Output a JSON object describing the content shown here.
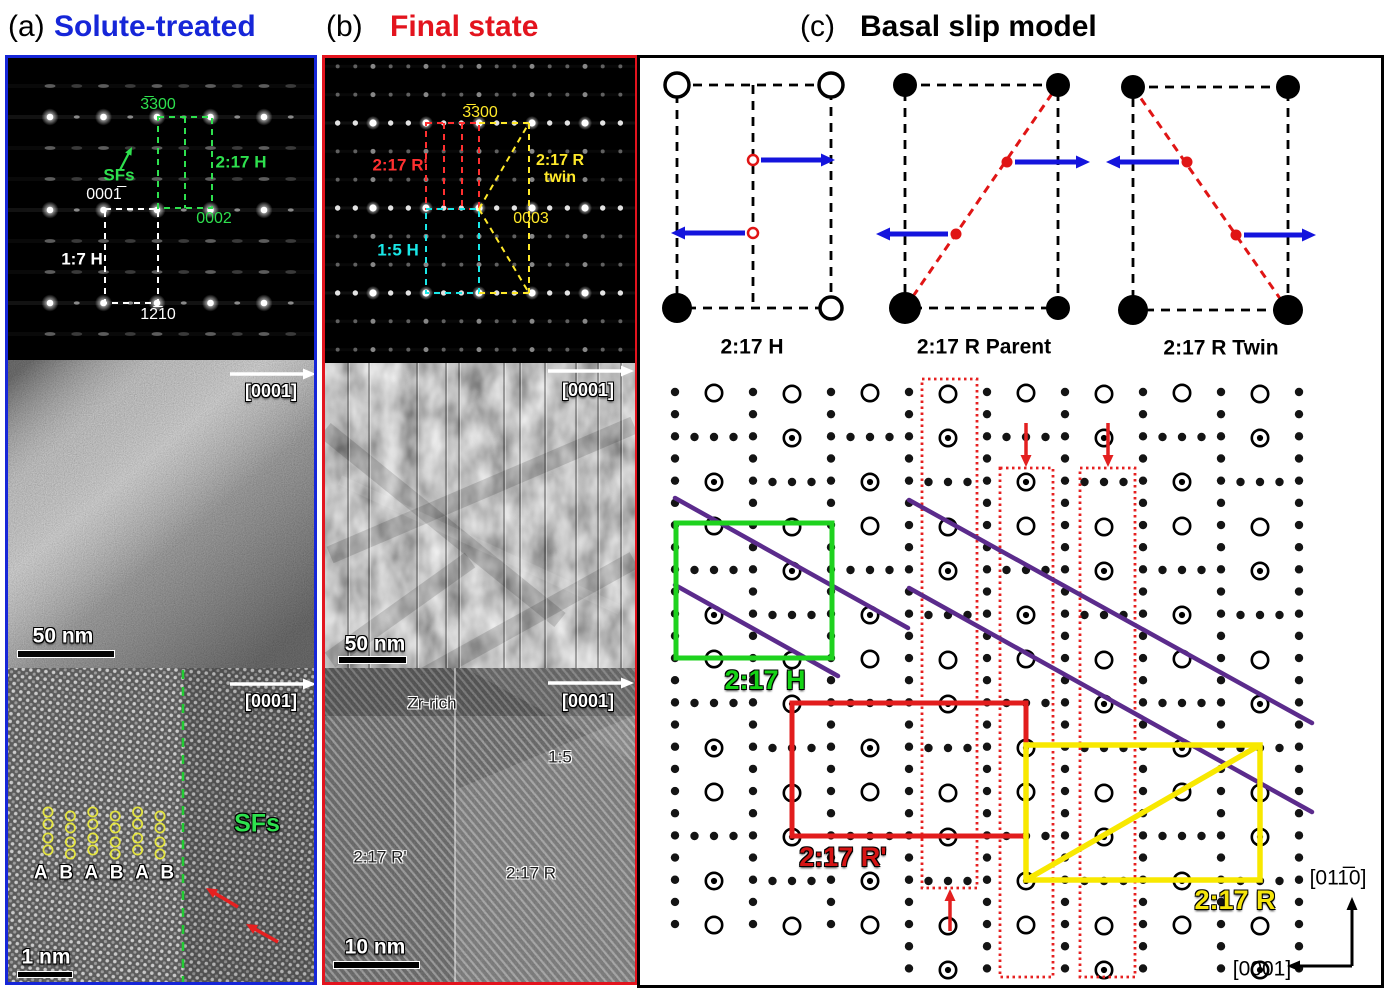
{
  "header": {
    "a_tag": "(a)",
    "a_title": "Solute-treated",
    "b_tag": "(b)",
    "b_title": "Final state",
    "c_tag": "(c)",
    "c_title": "Basal slip model"
  },
  "panel_a": {
    "diffraction": {
      "refl_3300": "3̅300",
      "sfs_label": "SFs",
      "phase_217h": "2:17 H",
      "refl_0002": "0002",
      "refl_0001": "0001̅",
      "phase_17h": "1:7 H",
      "refl_1210": "12̅10"
    },
    "tem": {
      "zone_axis": "[0001]",
      "scale": "50 nm"
    },
    "hrtem": {
      "zone_axis": "[0001]",
      "sfs_label": "SFs",
      "stacking": "A B A B A B",
      "scale": "1 nm"
    }
  },
  "panel_b": {
    "diffraction": {
      "refl_3300": "3̅300",
      "phase_217rp": "2:17 R'",
      "phase_217r_1": "2:17 R",
      "phase_217r_2": "twin",
      "refl_0003": "0003",
      "phase_15h": "1:5 H"
    },
    "tem": {
      "zone_axis": "[0001]",
      "scale": "50 nm"
    },
    "hrtem": {
      "zone_axis": "[0001]",
      "zr_rich": "Zr-rich",
      "phase_15": "1:5",
      "phase_217rp": "2:17 R'",
      "phase_217r": "2:17 R",
      "scale": "10 nm"
    }
  },
  "panel_c": {
    "cells": {
      "h": "2:17 H",
      "parent": "2:17 R Parent",
      "twin": "2:17 R Twin"
    },
    "lattice": {
      "h": "2:17 H",
      "rp": "2:17 R'",
      "r": "2:17 R"
    },
    "axes": {
      "up": "[011̅0]",
      "left": "[0001]"
    }
  },
  "colors": {
    "panel_a_accent": "#1626d8",
    "panel_b_accent": "#e3141e",
    "green_annot": "#2ee04e",
    "yellow_annot": "#ffe92a",
    "cyan_annot": "#1ae8e8",
    "red_annot": "#e32020",
    "purple_line": "#5b2b8c",
    "blue_arrow": "#1414dd",
    "lattice_green": "#16d416",
    "lattice_yellow": "#f5e50c"
  }
}
